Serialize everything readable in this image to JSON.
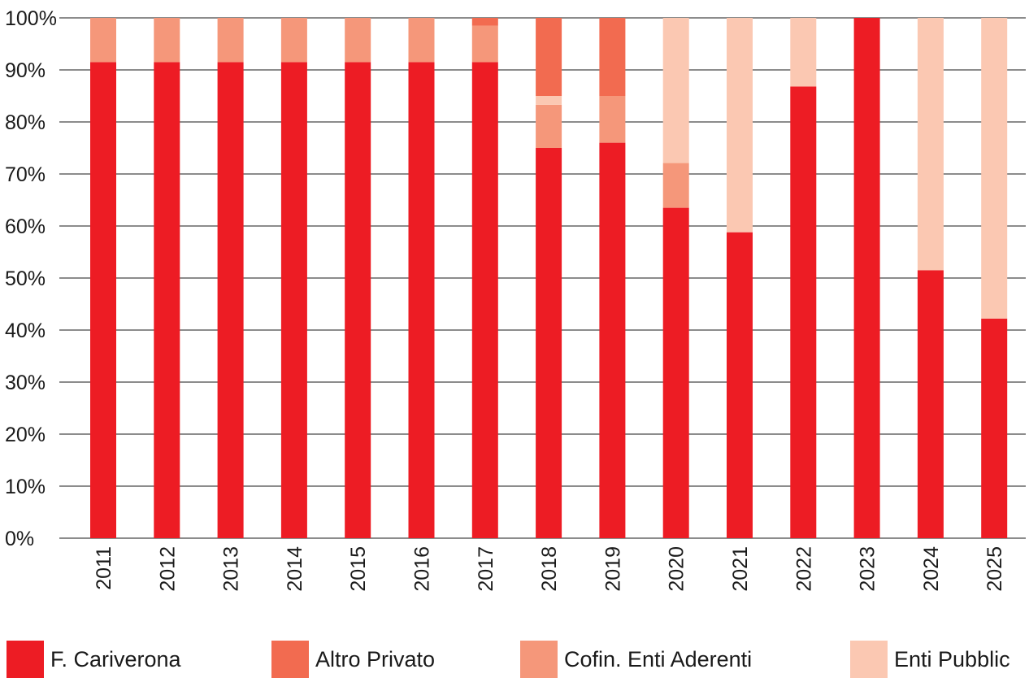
{
  "chart_data": {
    "type": "bar",
    "stacked": true,
    "categories": [
      "2011",
      "2012",
      "2013",
      "2014",
      "2015",
      "2016",
      "2017",
      "2018",
      "2019",
      "2020",
      "2021",
      "2022",
      "2023",
      "2024",
      "2025"
    ],
    "series": [
      {
        "name": "F. Cariverona",
        "color": "#ed1c24",
        "values": [
          91.5,
          91.5,
          91.5,
          91.5,
          91.5,
          91.5,
          91.5,
          75,
          76,
          63.5,
          58.8,
          86.8,
          100,
          51.5,
          42.2
        ]
      },
      {
        "name": "Cofin. Enti Aderenti",
        "color": "#f5977a",
        "values": [
          8.5,
          8.5,
          8.5,
          8.5,
          8.5,
          8.5,
          7,
          8.3,
          9,
          8.6,
          0,
          0,
          0,
          0,
          0
        ]
      },
      {
        "name": "Enti Pubblic",
        "color": "#fbc8b2",
        "values": [
          0,
          0,
          0,
          0,
          0,
          0,
          0,
          1.7,
          0,
          27.9,
          41.2,
          13.2,
          0,
          48.5,
          57.8
        ]
      },
      {
        "name": "Altro Privato",
        "color": "#f26b50",
        "values": [
          0,
          0,
          0,
          0,
          0,
          0,
          1.5,
          15,
          15,
          0,
          0,
          0,
          0,
          0,
          0
        ]
      }
    ],
    "y_ticks": [
      "0%",
      "10%",
      "20%",
      "30%",
      "40%",
      "50%",
      "60%",
      "70%",
      "80%",
      "90%",
      "100%"
    ],
    "ylim": [
      0,
      100
    ],
    "grid": true,
    "legend": {
      "position": "bottom",
      "items": [
        {
          "label": "F. Cariverona",
          "color": "#ed1c24"
        },
        {
          "label": "Altro Privato",
          "color": "#f26b50"
        },
        {
          "label": "Cofin. Enti Aderenti",
          "color": "#f5977a"
        },
        {
          "label": "Enti Pubblic",
          "color": "#fbc8b2"
        }
      ]
    }
  }
}
